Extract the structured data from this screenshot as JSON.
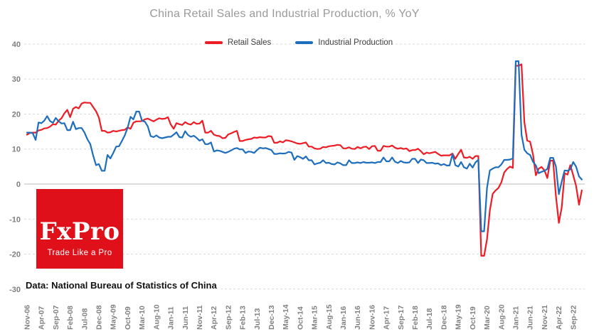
{
  "title_bar": {
    "note": ""
  },
  "source_note": "Data: National Bureau of Statistics of China",
  "logo": {
    "name": "FxPro",
    "tagline": "Trade Like a Pro",
    "bg_color": "#e0101a",
    "text_color": "#ffffff"
  },
  "colors": {
    "background": "#ffffff",
    "title_text": "#9a9a9a",
    "axis_labels": "#7f7f7f",
    "gridline": "#d9d9d9",
    "zero_line": "#b9b9b9",
    "retail_red": "#ee1c25",
    "industrial_blue": "#1e6ebe"
  },
  "chart_data": {
    "type": "line",
    "title": "China Retail Sales and Industrial Production, % YoY",
    "xlabel": "",
    "ylabel": "",
    "frequency": "monthly",
    "x_start": "Nov-2006",
    "x_end": "Dec-2022",
    "ylim": [
      -30,
      40
    ],
    "y_ticks": [
      40,
      30,
      20,
      10,
      0,
      -10,
      -20,
      -30
    ],
    "grid": "horizontal-dashed",
    "legend_position": "top-center",
    "x_tick_step_months": 5,
    "x_tick_labels": [
      "Nov-06",
      "Apr-07",
      "Sep-07",
      "Feb-08",
      "Jul-08",
      "Dec-08",
      "May-09",
      "Oct-09",
      "Mar-10",
      "Aug-10",
      "Jan-11",
      "Jun-11",
      "Nov-11",
      "Apr-12",
      "Sep-12",
      "Feb-13",
      "Jul-13",
      "Dec-13",
      "May-14",
      "Oct-14",
      "Mar-15",
      "Aug-15",
      "Jan-16",
      "Jun-16",
      "Nov-16",
      "Apr-17",
      "Sep-17",
      "Feb-18",
      "Jul-18",
      "Dec-18",
      "May-19",
      "Oct-19",
      "Mar-20",
      "Aug-20",
      "Jan-21",
      "Jun-21",
      "Nov-21",
      "Apr-22",
      "Sep-22"
    ],
    "series": [
      {
        "name": "Retail Sales",
        "color": "#ee1c25",
        "values": [
          14.1,
          14.6,
          14.7,
          14.7,
          15.3,
          15.5,
          15.9,
          16.0,
          16.4,
          17.1,
          17.0,
          18.1,
          18.8,
          20.2,
          21.2,
          19.1,
          21.5,
          22.0,
          21.6,
          23.0,
          23.3,
          23.2,
          23.2,
          22.0,
          20.8,
          19.0,
          15.2,
          15.2,
          14.7,
          14.8,
          15.2,
          15.0,
          15.2,
          15.4,
          15.5,
          16.2,
          15.8,
          17.5,
          17.9,
          17.9,
          18.0,
          18.5,
          18.7,
          18.3,
          17.9,
          18.4,
          18.8,
          18.6,
          18.7,
          19.1,
          17.0,
          15.8,
          17.4,
          17.1,
          16.9,
          17.7,
          17.2,
          17.0,
          17.7,
          17.2,
          17.3,
          18.1,
          14.7,
          14.7,
          15.2,
          14.1,
          13.8,
          13.7,
          13.1,
          13.2,
          14.2,
          14.5,
          14.9,
          15.2,
          12.3,
          12.3,
          12.6,
          12.8,
          12.9,
          13.3,
          13.2,
          13.4,
          13.3,
          13.3,
          13.7,
          13.6,
          11.8,
          11.8,
          12.2,
          11.9,
          12.5,
          12.4,
          12.2,
          11.9,
          11.6,
          11.5,
          11.7,
          11.9,
          10.7,
          10.7,
          10.2,
          10.0,
          10.1,
          10.6,
          10.5,
          10.8,
          10.9,
          11.0,
          11.2,
          11.1,
          10.2,
          10.2,
          10.5,
          10.1,
          10.0,
          10.6,
          10.2,
          10.6,
          10.7,
          10.0,
          10.8,
          10.9,
          9.5,
          9.5,
          10.9,
          10.7,
          10.7,
          11.0,
          10.4,
          10.1,
          10.3,
          10.0,
          10.2,
          9.4,
          9.7,
          9.7,
          10.1,
          9.4,
          8.5,
          9.0,
          8.8,
          9.0,
          9.2,
          8.6,
          8.1,
          8.2,
          8.2,
          8.2,
          8.7,
          7.2,
          8.6,
          9.8,
          7.6,
          7.5,
          7.8,
          7.2,
          8.0,
          8.0,
          -20.5,
          -20.5,
          -15.8,
          -7.5,
          -2.8,
          -1.8,
          -1.1,
          0.5,
          3.3,
          4.3,
          5.0,
          4.6,
          33.8,
          33.8,
          34.2,
          17.7,
          12.4,
          12.1,
          8.5,
          2.5,
          4.4,
          4.9,
          3.9,
          1.7,
          6.7,
          6.7,
          -3.5,
          -11.1,
          -6.7,
          3.1,
          2.7,
          5.4,
          2.5,
          -0.5,
          -5.9,
          -1.8
        ]
      },
      {
        "name": "Industrial Production",
        "color": "#1e6ebe",
        "values": [
          14.7,
          14.7,
          14.5,
          12.6,
          17.6,
          17.4,
          18.1,
          19.4,
          18.0,
          17.5,
          18.9,
          17.9,
          17.3,
          17.4,
          15.4,
          15.4,
          17.8,
          15.7,
          16.0,
          16.0,
          14.7,
          12.8,
          11.4,
          8.2,
          5.4,
          5.7,
          3.8,
          3.8,
          8.3,
          7.3,
          8.9,
          10.7,
          10.8,
          12.3,
          13.9,
          16.1,
          19.2,
          18.5,
          20.7,
          20.7,
          18.1,
          17.8,
          16.5,
          13.7,
          13.4,
          13.9,
          13.3,
          13.1,
          13.3,
          13.5,
          13.5,
          14.1,
          14.8,
          13.4,
          13.3,
          15.1,
          14.0,
          13.5,
          13.8,
          13.2,
          12.4,
          12.8,
          11.4,
          11.4,
          11.9,
          9.3,
          9.6,
          9.5,
          9.2,
          8.9,
          9.2,
          9.6,
          10.1,
          10.3,
          9.9,
          9.9,
          8.9,
          9.3,
          9.2,
          8.9,
          9.7,
          10.4,
          10.2,
          10.3,
          10.0,
          9.7,
          8.6,
          8.6,
          8.8,
          8.7,
          8.8,
          9.2,
          9.0,
          6.9,
          8.0,
          7.7,
          7.2,
          7.9,
          6.8,
          6.8,
          5.6,
          5.9,
          6.1,
          6.8,
          6.0,
          6.1,
          5.7,
          5.6,
          6.2,
          5.9,
          5.4,
          5.4,
          6.8,
          6.0,
          6.0,
          6.2,
          6.0,
          6.3,
          6.1,
          6.1,
          6.2,
          6.0,
          6.3,
          6.3,
          7.6,
          6.5,
          6.5,
          7.6,
          6.4,
          6.0,
          6.6,
          6.2,
          6.1,
          6.2,
          7.2,
          7.2,
          6.0,
          7.0,
          6.8,
          6.0,
          6.0,
          6.1,
          5.8,
          5.9,
          5.4,
          5.7,
          5.3,
          5.3,
          8.5,
          5.4,
          5.0,
          6.3,
          4.8,
          4.4,
          5.8,
          4.7,
          6.2,
          6.9,
          -13.5,
          -13.5,
          -1.1,
          3.9,
          4.4,
          4.8,
          4.8,
          5.6,
          6.9,
          6.9,
          7.0,
          7.3,
          35.1,
          35.1,
          14.1,
          9.8,
          8.8,
          8.3,
          6.4,
          5.3,
          3.1,
          3.5,
          3.8,
          4.3,
          7.5,
          7.5,
          5.0,
          -2.9,
          0.7,
          3.9,
          3.8,
          4.2,
          6.3,
          5.0,
          2.2,
          1.3
        ]
      }
    ]
  }
}
